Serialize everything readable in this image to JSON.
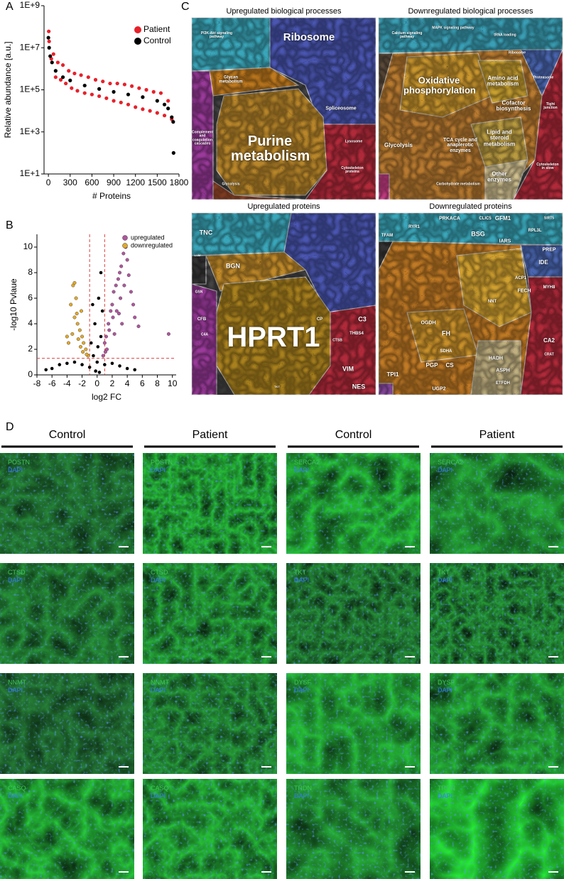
{
  "panel_labels": [
    "A",
    "B",
    "C",
    "D"
  ],
  "chart_data": [
    {
      "type": "scatter",
      "log_y": true,
      "y_label": "Relative abundance [a.u.]",
      "x_label": "# Proteins",
      "xlim": [
        -60,
        1800
      ],
      "xticks": [
        0,
        300,
        600,
        900,
        1200,
        1500,
        1800
      ],
      "ylim": [
        10,
        1000000000
      ],
      "yticks": [
        {
          "value": 10,
          "label": "1E+1"
        },
        {
          "value": 1000,
          "label": "1E+3"
        },
        {
          "value": 100000,
          "label": "1E+5"
        },
        {
          "value": 10000000,
          "label": "1E+7"
        },
        {
          "value": 1000000000,
          "label": "1E+9"
        }
      ],
      "legend": "upper right",
      "series": [
        {
          "name": "Patient",
          "color": "#e8202a",
          "x": [
            5,
            10,
            40,
            70,
            100,
            130,
            170,
            200,
            240,
            280,
            320,
            360,
            400,
            450,
            500,
            550,
            600,
            650,
            700,
            750,
            800,
            850,
            900,
            950,
            1000,
            1050,
            1100,
            1150,
            1200,
            1250,
            1300,
            1350,
            1400,
            1450,
            1500,
            1550,
            1600,
            1650,
            1700
          ],
          "y": [
            60000000,
            20000000,
            3000000,
            5000000,
            400000,
            2000000,
            300000,
            1500000,
            200000,
            800000,
            120000,
            600000,
            90000,
            500000,
            70000,
            400000,
            60000,
            300000,
            50000,
            250000,
            40000,
            200000,
            30000,
            200000,
            25000,
            180000,
            20000,
            150000,
            15000,
            120000,
            12000,
            100000,
            10000,
            80000,
            8000,
            70000,
            6000,
            30000,
            4000
          ]
        },
        {
          "name": "Control",
          "color": "#000000",
          "x": [
            0,
            10,
            25,
            50,
            100,
            200,
            300,
            500,
            700,
            900,
            1100,
            1300,
            1500,
            1600,
            1650,
            1700,
            1720,
            1725
          ],
          "y": [
            30000000,
            10000000,
            4000000,
            2000000,
            800000,
            400000,
            280000,
            160000,
            110000,
            80000,
            60000,
            45000,
            30000,
            20000,
            13000,
            5000,
            3000,
            100
          ]
        }
      ]
    },
    {
      "type": "scatter",
      "log_y": false,
      "y_label": "-log10 Pvlaue",
      "x_label": "log2 FC",
      "xlim": [
        -8,
        10.5
      ],
      "xticks": [
        -8,
        -6,
        -4,
        -2,
        0,
        2,
        4,
        6,
        8,
        10
      ],
      "ylim": [
        0,
        11
      ],
      "yticks": [
        0,
        2,
        4,
        6,
        8,
        10
      ],
      "thresholds": {
        "x": [
          -1,
          1
        ],
        "y": 1.3
      },
      "legend": "upper right",
      "series": [
        {
          "color": "#000000",
          "x": [
            -6.8,
            -6,
            -5,
            -4,
            -3,
            -2,
            -1,
            -0.5,
            0,
            0.5,
            -0.3,
            0.2,
            0.5,
            0.7,
            -0.8,
            0.3,
            -0.2,
            1,
            2,
            3,
            4,
            5,
            -0.6,
            0.1
          ],
          "y": [
            0.4,
            0.5,
            0.8,
            0.9,
            1,
            0.8,
            0.6,
            1.5,
            1,
            3,
            4,
            6,
            8,
            5,
            2.5,
            0.2,
            0.3,
            0.8,
            0.9,
            0.7,
            0.5,
            0.4,
            5.5,
            2.2
          ]
        },
        {
          "name": "upregulated",
          "color": "#b0569e",
          "x": [
            0.8,
            1,
            1.2,
            1.5,
            1.8,
            2,
            2.2,
            2.5,
            2.8,
            3,
            3.2,
            3.5,
            3.8,
            4,
            1.3,
            1.6,
            2.1,
            2.6,
            3.1,
            3.6,
            4.2,
            4.5,
            5,
            5.5,
            9.5,
            1.1,
            2.3,
            2.9,
            3.3,
            4.8
          ],
          "y": [
            1.5,
            2.5,
            3,
            4,
            5,
            5.5,
            6.5,
            7,
            7.5,
            8,
            8.5,
            9.5,
            10,
            9,
            2,
            3.5,
            4.5,
            5,
            6,
            7,
            7.8,
            6.5,
            4.5,
            3.8,
            3.2,
            1.8,
            3.2,
            4.8,
            4,
            5.5
          ]
        },
        {
          "name": "downregulated",
          "color": "#e2a82a",
          "x": [
            -1.2,
            -1.5,
            -1.8,
            -2,
            -2.3,
            -2.6,
            -3,
            -3.5,
            -3.2,
            -3,
            -2.8,
            -2.2,
            -1.9,
            -2.5,
            -3.8,
            -4,
            -2.7,
            -1.4,
            -3.3,
            -2.1
          ],
          "y": [
            1.5,
            2,
            2.5,
            3,
            3.5,
            4,
            4.5,
            5.5,
            7,
            7.2,
            6,
            2.2,
            1.8,
            2.8,
            2.5,
            3,
            4.8,
            1.6,
            3.2,
            5
          ]
        }
      ]
    }
  ],
  "treemaps": [
    {
      "title": "Upregulated biological processes",
      "labels": [
        "Ribosome",
        "Spliceosome",
        "Purine metabolism",
        "Glycan metabolism",
        "Lysosome",
        "Cytoskeleton proteins",
        "Complement and coagulation cascades",
        "Glycolysis",
        "PI3K-Akt signaling pathway"
      ]
    },
    {
      "title": "Downregulated biological processes",
      "labels": [
        "Oxidative phosphorylation",
        "Amino acid metabolism",
        "Cofactor biosynthesis",
        "Lipid and steroid metabolism",
        "TCA cycle and anaplerotic enzymes",
        "Glycolysis",
        "Other enzymes",
        "Carbohydrate metabolism",
        "Tight junction",
        "Cytoskeleton in slow",
        "MAPK signaling pathway",
        "tRNA loading",
        "Ribosome",
        "Proteasome",
        "Calcium signaling pathway"
      ]
    },
    {
      "title": "Upregulated proteins",
      "labels": [
        "HPRT1",
        "TNC",
        "BGN",
        "CP",
        "C3",
        "VIM",
        "NES",
        "THBS4",
        "CFB",
        "C4A",
        "GSN",
        "CTSB",
        "LUM",
        "TKT"
      ]
    },
    {
      "title": "Downregulated proteins",
      "labels": [
        "PRKACA",
        "BSG",
        "GFM1",
        "RPL3L",
        "SIRT5",
        "TFAM",
        "RYR1",
        "CLIC5",
        "IARS",
        "IDE",
        "PREP",
        "MYH8",
        "CA2",
        "CRAT",
        "FH",
        "OGDH",
        "SDHA",
        "CS",
        "PGP",
        "TPI1",
        "UGP2",
        "HADH",
        "ASPH",
        "ETFDH",
        "NNT",
        "FECH",
        "ACP1"
      ]
    }
  ],
  "micrographs": {
    "column_headers": [
      "Control",
      "Patient",
      "Control",
      "Patient"
    ],
    "rows": [
      [
        {
          "stain": "POSTN",
          "counterstain": "DAPI"
        },
        {
          "stain": "POSTN",
          "counterstain": "DAPI"
        },
        {
          "stain": "SERCA2",
          "counterstain": "DAPI"
        },
        {
          "stain": "SERCA2",
          "counterstain": "DAPI"
        }
      ],
      [
        {
          "stain": "CTSD",
          "counterstain": "DAPI"
        },
        {
          "stain": "CTSD",
          "counterstain": "DAPI"
        },
        {
          "stain": "TKT",
          "counterstain": "DAPI"
        },
        {
          "stain": "TKT",
          "counterstain": "DAPI"
        }
      ],
      [
        {
          "stain": "NNMT",
          "counterstain": "DAPI"
        },
        {
          "stain": "NNMT",
          "counterstain": "DAPI"
        },
        {
          "stain": "DYSF",
          "counterstain": "DAPI"
        },
        {
          "stain": "DYSF",
          "counterstain": "DAPI"
        }
      ],
      [
        {
          "stain": "CASQ",
          "counterstain": "DAPI"
        },
        {
          "stain": "CASQ",
          "counterstain": "DAPI"
        },
        {
          "stain": "TRDN",
          "counterstain": "DAPI"
        },
        {
          "stain": "TRDN",
          "counterstain": "DAPI"
        }
      ]
    ]
  }
}
